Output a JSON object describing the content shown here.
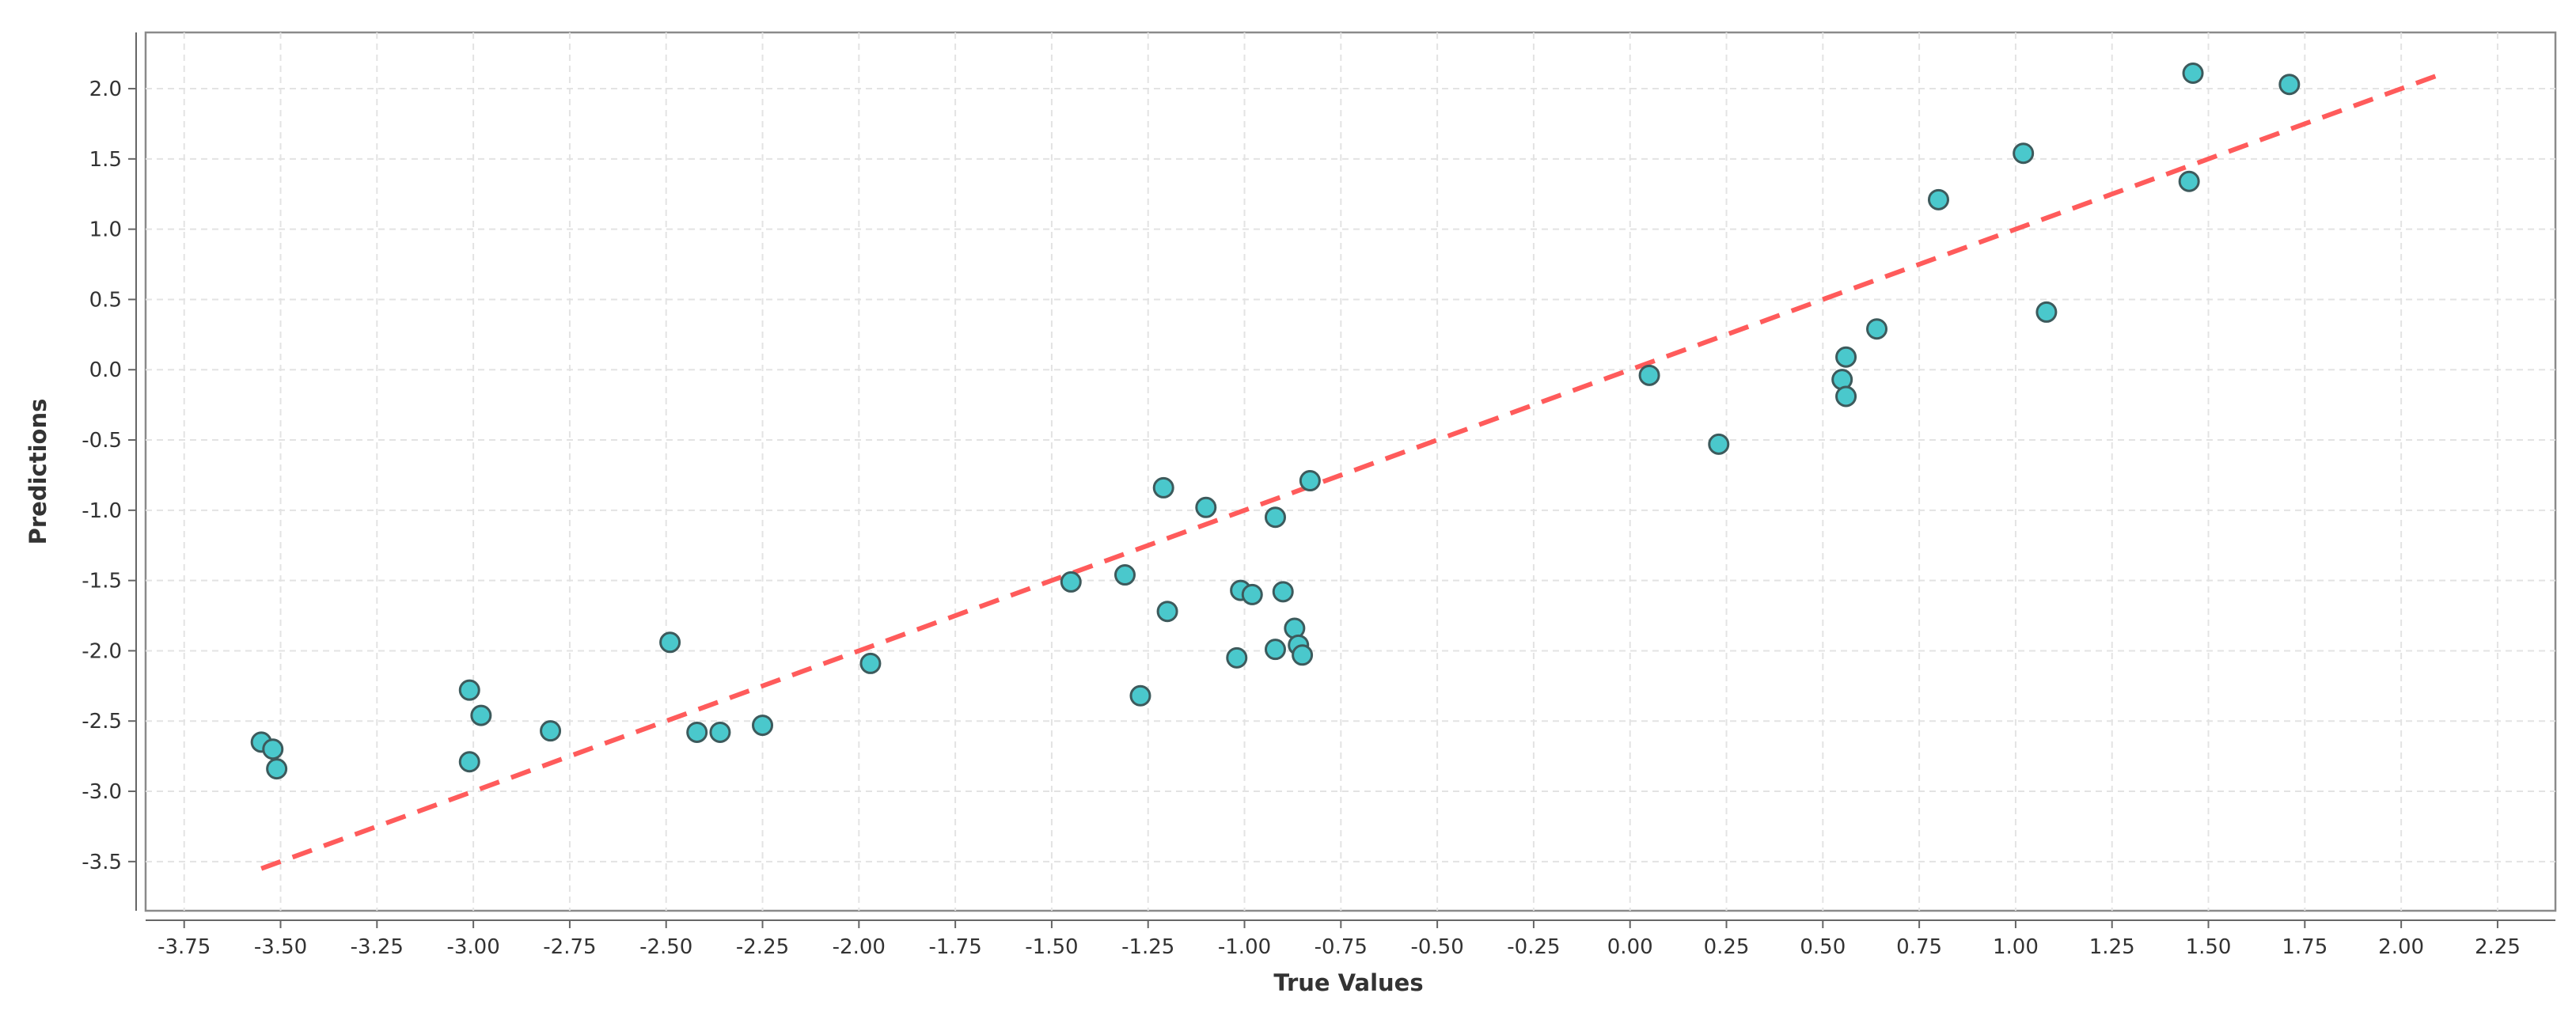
{
  "chart_data": {
    "type": "scatter",
    "xlabel": "True Values",
    "ylabel": "Predictions",
    "xlim": [
      -3.85,
      2.4
    ],
    "ylim": [
      -3.85,
      2.4
    ],
    "x_ticks": [
      "-3.75",
      "-3.50",
      "-3.25",
      "-3.00",
      "-2.75",
      "-2.50",
      "-2.25",
      "-2.00",
      "-1.75",
      "-1.50",
      "-1.25",
      "-1.00",
      "-0.75",
      "-0.50",
      "-0.25",
      "0.00",
      "0.25",
      "0.50",
      "0.75",
      "1.00",
      "1.25",
      "1.50",
      "1.75",
      "2.00",
      "2.25"
    ],
    "y_ticks": [
      "-3.5",
      "-3.0",
      "-2.5",
      "-2.0",
      "-1.5",
      "-1.0",
      "-0.5",
      "0.0",
      "0.5",
      "1.0",
      "1.5",
      "2.0"
    ],
    "grid": true,
    "points": [
      {
        "x": -3.55,
        "y": -2.65
      },
      {
        "x": -3.52,
        "y": -2.7
      },
      {
        "x": -3.51,
        "y": -2.84
      },
      {
        "x": -3.01,
        "y": -2.28
      },
      {
        "x": -2.98,
        "y": -2.46
      },
      {
        "x": -3.01,
        "y": -2.79
      },
      {
        "x": -2.8,
        "y": -2.57
      },
      {
        "x": -2.49,
        "y": -1.94
      },
      {
        "x": -2.42,
        "y": -2.58
      },
      {
        "x": -2.36,
        "y": -2.58
      },
      {
        "x": -2.25,
        "y": -2.53
      },
      {
        "x": -1.97,
        "y": -2.09
      },
      {
        "x": -1.45,
        "y": -1.51
      },
      {
        "x": -1.31,
        "y": -1.46
      },
      {
        "x": -1.27,
        "y": -2.32
      },
      {
        "x": -1.21,
        "y": -0.84
      },
      {
        "x": -1.2,
        "y": -1.72
      },
      {
        "x": -1.1,
        "y": -0.98
      },
      {
        "x": -1.01,
        "y": -1.57
      },
      {
        "x": -0.98,
        "y": -1.6
      },
      {
        "x": -1.02,
        "y": -2.05
      },
      {
        "x": -0.92,
        "y": -1.05
      },
      {
        "x": -0.9,
        "y": -1.58
      },
      {
        "x": -0.92,
        "y": -1.99
      },
      {
        "x": -0.87,
        "y": -1.84
      },
      {
        "x": -0.86,
        "y": -1.96
      },
      {
        "x": -0.85,
        "y": -2.03
      },
      {
        "x": -0.83,
        "y": -0.79
      },
      {
        "x": 0.05,
        "y": -0.04
      },
      {
        "x": 0.23,
        "y": -0.53
      },
      {
        "x": 0.56,
        "y": 0.09
      },
      {
        "x": 0.55,
        "y": -0.07
      },
      {
        "x": 0.56,
        "y": -0.19
      },
      {
        "x": 0.64,
        "y": 0.29
      },
      {
        "x": 0.8,
        "y": 1.21
      },
      {
        "x": 1.02,
        "y": 1.54
      },
      {
        "x": 1.08,
        "y": 0.41
      },
      {
        "x": 1.45,
        "y": 1.34
      },
      {
        "x": 1.46,
        "y": 2.11
      },
      {
        "x": 1.71,
        "y": 2.03
      }
    ],
    "reference_line": {
      "x": [
        -3.55,
        2.09
      ],
      "y": [
        -3.55,
        2.09
      ],
      "color": "#ff5b5b",
      "style": "dashed"
    },
    "colors": {
      "point_fill": "#4ac8cc",
      "point_stroke": "#3d5a5c",
      "line": "#ff5b5b"
    }
  }
}
